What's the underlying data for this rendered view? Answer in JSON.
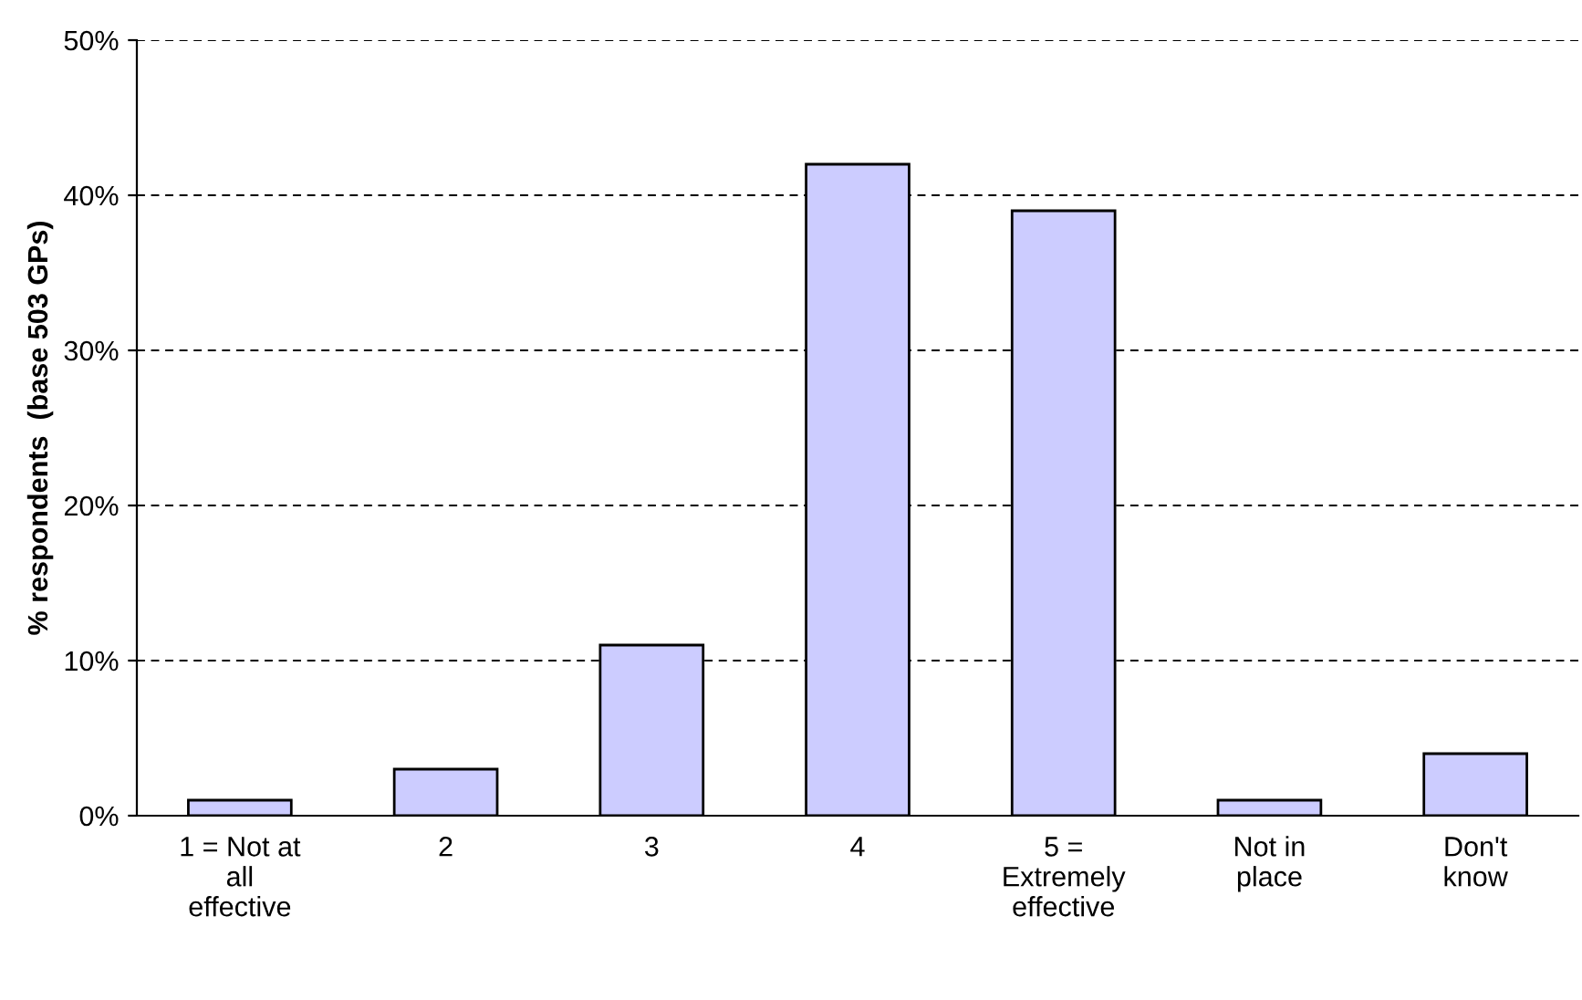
{
  "chart_data": {
    "type": "bar",
    "ylabel": "% respondents  (base 503 GPs)",
    "categories": [
      "1 = Not at\nall\neffective",
      "2",
      "3",
      "4",
      "5 =\nExtremely\neffective",
      "Not in\nplace",
      "Don't\nknow"
    ],
    "values": [
      1,
      3,
      11,
      42,
      39,
      1,
      4
    ],
    "color": "#ccccff",
    "ylim": [
      0,
      50
    ],
    "yticks": [
      {
        "value": 0,
        "label": "0%"
      },
      {
        "value": 10,
        "label": "10%"
      },
      {
        "value": 20,
        "label": "20%"
      },
      {
        "value": 30,
        "label": "30%"
      },
      {
        "value": 40,
        "label": "40%"
      },
      {
        "value": 50,
        "label": "50%"
      }
    ],
    "grid": "y",
    "legend": false
  }
}
